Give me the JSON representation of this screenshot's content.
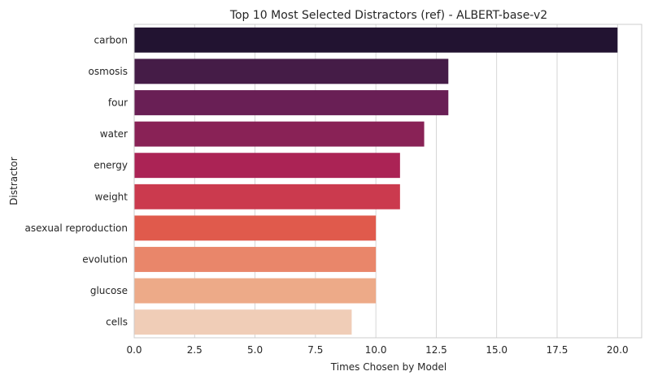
{
  "chart_data": {
    "type": "bar",
    "orientation": "horizontal",
    "title": "Top 10 Most Selected Distractors (ref) - ALBERT-base-v2",
    "xlabel": "Times Chosen by Model",
    "ylabel": "Distractor",
    "categories": [
      "carbon",
      "osmosis",
      "four",
      "water",
      "energy",
      "weight",
      "asexual reproduction",
      "evolution",
      "glucose",
      "cells"
    ],
    "values": [
      20,
      13,
      13,
      12,
      11,
      11,
      10,
      10,
      10,
      9
    ],
    "colors": [
      "#221331",
      "#451c47",
      "#691f55",
      "#892256",
      "#ab2355",
      "#cb3a4e",
      "#e05a4c",
      "#e9866a",
      "#edaa88",
      "#f0cdb7"
    ],
    "xlim": [
      0,
      21
    ],
    "xticks": [
      0,
      2.5,
      5,
      7.5,
      10,
      12.5,
      15,
      17.5,
      20
    ],
    "xtick_labels": [
      "0.0",
      "2.5",
      "5.0",
      "7.5",
      "10.0",
      "12.5",
      "15.0",
      "17.5",
      "20.0"
    ],
    "grid": true
  }
}
